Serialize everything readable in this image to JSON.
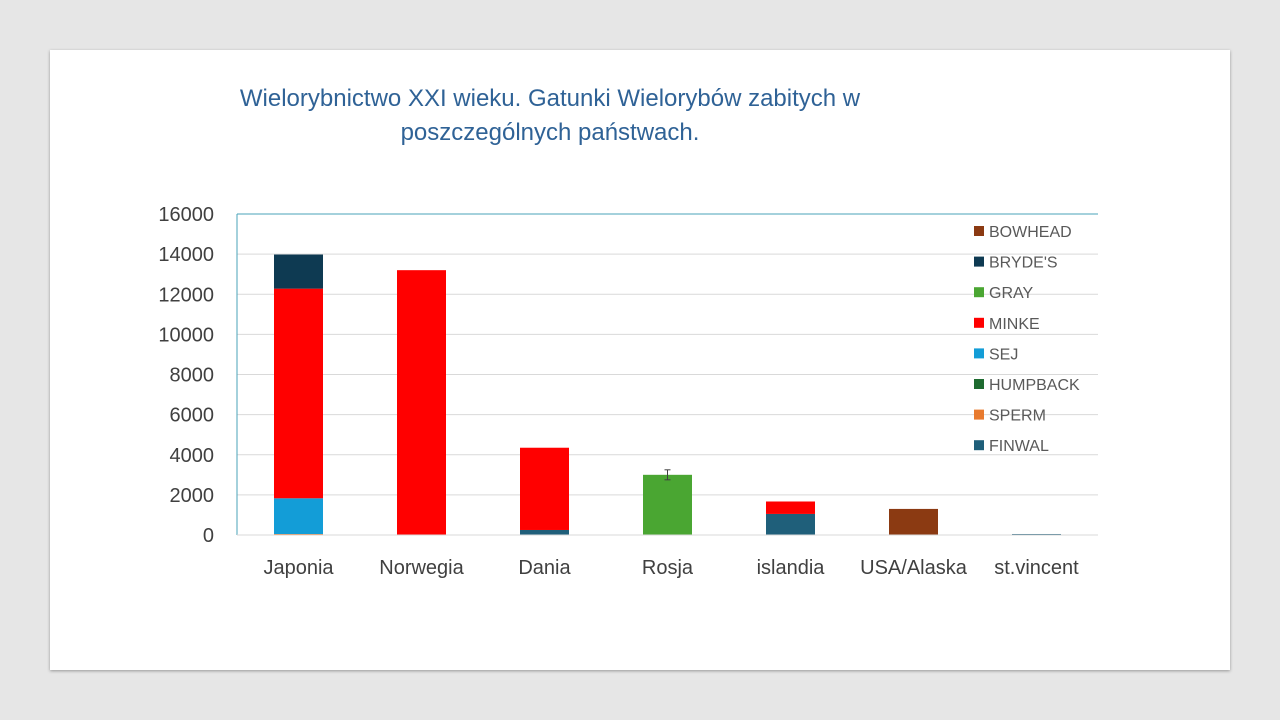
{
  "chart_data": {
    "type": "bar",
    "stacked": true,
    "title": "Wielorybnictwo XXI wieku. Gatunki Wielorybów zabitych w poszczególnych państwach.",
    "categories": [
      "Japonia",
      "Norwegia",
      "Dania",
      "Rosja",
      "islandia",
      "USA/Alaska",
      "st.vincent"
    ],
    "ylim": [
      0,
      16000
    ],
    "yticks": [
      0,
      2000,
      4000,
      6000,
      8000,
      10000,
      12000,
      14000,
      16000
    ],
    "grid": true,
    "legend_position": "right",
    "series": [
      {
        "name": "FINWAL",
        "color": "#1f5f7a",
        "values": [
          0,
          0,
          250,
          0,
          1050,
          0,
          50
        ]
      },
      {
        "name": "SPERM",
        "color": "#e87a2e",
        "values": [
          50,
          0,
          0,
          0,
          0,
          0,
          0
        ]
      },
      {
        "name": "HUMPBACK",
        "color": "#1e6b30",
        "values": [
          0,
          0,
          0,
          0,
          0,
          0,
          0
        ]
      },
      {
        "name": "SEJ",
        "color": "#139dd7",
        "values": [
          1780,
          0,
          0,
          0,
          0,
          0,
          0
        ]
      },
      {
        "name": "MINKE",
        "color": "#ff0000",
        "values": [
          10450,
          13200,
          4100,
          0,
          620,
          0,
          0
        ]
      },
      {
        "name": "GRAY",
        "color": "#4aa632",
        "values": [
          0,
          0,
          0,
          3000,
          0,
          0,
          0
        ]
      },
      {
        "name": "BRYDE'S",
        "color": "#0e3a52",
        "values": [
          1700,
          0,
          0,
          0,
          0,
          0,
          0
        ]
      },
      {
        "name": "BOWHEAD",
        "color": "#8b3a12",
        "values": [
          0,
          0,
          0,
          0,
          0,
          1300,
          0
        ]
      }
    ],
    "legend_order": [
      "BOWHEAD",
      "BRYDE'S",
      "GRAY",
      "MINKE",
      "SEJ",
      "HUMPBACK",
      "SPERM",
      "FINWAL"
    ]
  }
}
